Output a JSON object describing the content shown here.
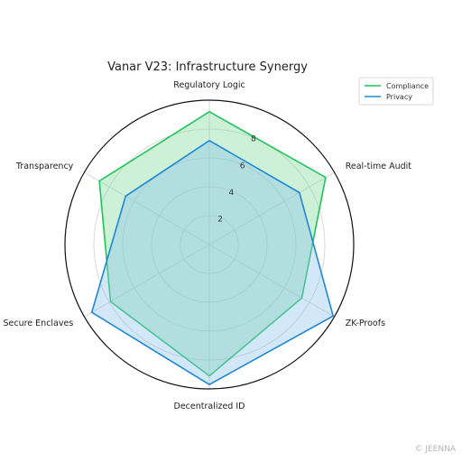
{
  "chart_data": {
    "type": "radar",
    "title": "Vanar V23: Infrastructure Synergy",
    "categories": [
      "Regulatory Logic",
      "Real-time Audit",
      "ZK-Proofs",
      "Decentralized ID",
      "Secure Enclaves",
      "Transparency"
    ],
    "rticks": [
      2,
      4,
      6,
      8
    ],
    "rlim": [
      0,
      10
    ],
    "grid": true,
    "legend_position": "top-right",
    "series": [
      {
        "name": "Compliance",
        "values": [
          9.2,
          9.3,
          7.4,
          9.1,
          7.9,
          8.8
        ],
        "color": "#1fc45a",
        "fill": "#7fdc9c"
      },
      {
        "name": "Privacy",
        "values": [
          7.2,
          7.2,
          9.9,
          9.7,
          9.4,
          6.7
        ],
        "color": "#1e88d6",
        "fill": "#8ec4ea"
      }
    ]
  },
  "watermark": "© JEENNA"
}
